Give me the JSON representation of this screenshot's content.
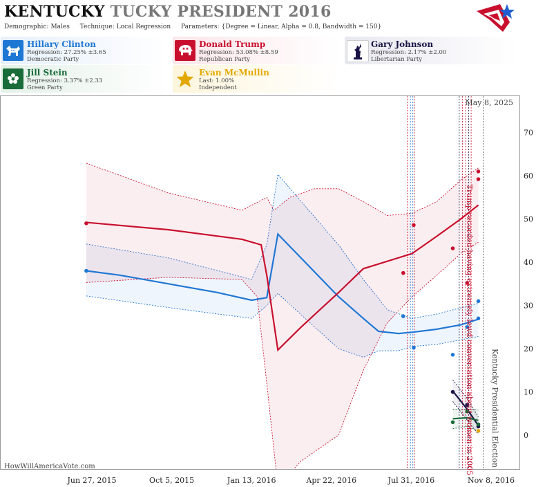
{
  "header": {
    "state": "KENTUCKY",
    "title_rest": "TUCKY PRESIDENT 2016",
    "demographic_label": "Demographic:",
    "demographic_value": "Males",
    "technique_label": "Technique:",
    "technique_value": "Local Regression",
    "parameters_label": "Parameters:",
    "parameters_value": "{Degree = Linear, Alpha = 0.8, Bandwidth = 150}"
  },
  "candidates": [
    {
      "name": "Hillary Clinton",
      "line1": "Regression: 27.25% ±3.65",
      "line2": "Democratic Party",
      "color": "#1f77d4",
      "icon": "donkey-icon"
    },
    {
      "name": "Donald Trump",
      "line1": "Regression: 53.08% ±8.59",
      "line2": "Republican Party",
      "color": "#c8102e",
      "icon": "elephant-icon"
    },
    {
      "name": "Gary Johnson",
      "line1": "Regression: 2.17% ±2.00",
      "line2": "Libertarian Party",
      "color": "#1a1446",
      "icon": "liberty-statue-icon"
    },
    {
      "name": "Jill Stein",
      "line1": "Regression: 3.37% ±2.33",
      "line2": "Green Party",
      "color": "#1a6b3a",
      "icon": "flower-icon"
    },
    {
      "name": "Evan McMullin",
      "line1": "Last: 1.00%",
      "line2": "Independent",
      "color": "#e3a800",
      "icon": "star-icon"
    }
  ],
  "chart_data": {
    "type": "line",
    "x_ticks": [
      "Jun 27, 2015",
      "Oct 5, 2015",
      "Jan 13, 2016",
      "Apr 22, 2016",
      "Jul 31, 2016",
      "Nov 8, 2016"
    ],
    "y_ticks": [
      0,
      10,
      20,
      30,
      40,
      50,
      60,
      70
    ],
    "ylim": [
      -9,
      78
    ],
    "date_label": "May 8, 2025",
    "credit": "HowWillAmericaVote.com",
    "annotations": {
      "trump_recording": "Trump recorded having extremely lewd conversation about women in 2005",
      "election": "Kentucky Presidential Election"
    },
    "series": [
      {
        "name": "Hillary Clinton",
        "color": "#1f77d4",
        "points": [
          [
            "2015-06-20",
            38.0
          ],
          [
            "2016-07-21",
            27.5
          ],
          [
            "2016-08-03",
            20.2
          ],
          [
            "2016-09-21",
            18.6
          ],
          [
            "2016-10-09",
            25.0
          ],
          [
            "2016-10-23",
            31.0
          ],
          [
            "2016-10-23",
            27.0
          ]
        ],
        "trend": [
          [
            "2015-06-20",
            38
          ],
          [
            "2015-08-01",
            37
          ],
          [
            "2015-10-01",
            35
          ],
          [
            "2015-12-01",
            33
          ],
          [
            "2016-01-13",
            31.2
          ],
          [
            "2016-02-01",
            31.8
          ],
          [
            "2016-02-15",
            46.5
          ],
          [
            "2016-03-20",
            40
          ],
          [
            "2016-05-01",
            32
          ],
          [
            "2016-06-01",
            27
          ],
          [
            "2016-06-20",
            24
          ],
          [
            "2016-07-15",
            23.5
          ],
          [
            "2016-08-01",
            23.8
          ],
          [
            "2016-09-01",
            24.5
          ],
          [
            "2016-10-01",
            25.5
          ],
          [
            "2016-10-23",
            26.8
          ]
        ],
        "upper": [
          [
            "2015-06-20",
            44.2
          ],
          [
            "2015-10-01",
            41
          ],
          [
            "2016-01-13",
            36
          ],
          [
            "2016-02-01",
            44
          ],
          [
            "2016-02-15",
            60.3
          ],
          [
            "2016-03-20",
            53
          ],
          [
            "2016-05-01",
            44
          ],
          [
            "2016-06-01",
            36
          ],
          [
            "2016-07-01",
            29
          ],
          [
            "2016-08-01",
            27
          ],
          [
            "2016-09-01",
            28
          ],
          [
            "2016-10-23",
            30.5
          ]
        ],
        "lower": [
          [
            "2015-06-20",
            32.2
          ],
          [
            "2015-10-01",
            29.5
          ],
          [
            "2016-01-13",
            27
          ],
          [
            "2016-02-01",
            30
          ],
          [
            "2016-02-15",
            32.8
          ],
          [
            "2016-03-20",
            27
          ],
          [
            "2016-05-01",
            20
          ],
          [
            "2016-06-01",
            18
          ],
          [
            "2016-06-20",
            19.5
          ],
          [
            "2016-07-15",
            19.5
          ],
          [
            "2016-08-01",
            20.5
          ],
          [
            "2016-09-01",
            21
          ],
          [
            "2016-10-23",
            22.8
          ]
        ]
      },
      {
        "name": "Donald Trump",
        "color": "#c8102e",
        "points": [
          [
            "2015-06-20",
            49.0
          ],
          [
            "2016-07-21",
            37.5
          ],
          [
            "2016-08-03",
            48.6
          ],
          [
            "2016-09-21",
            43.2
          ],
          [
            "2016-10-09",
            35.2
          ],
          [
            "2016-10-23",
            61.0
          ],
          [
            "2016-10-23",
            59.2
          ]
        ],
        "trend": [
          [
            "2015-06-20",
            49.2
          ],
          [
            "2015-10-01",
            47.5
          ],
          [
            "2016-01-01",
            45.3
          ],
          [
            "2016-01-25",
            44
          ],
          [
            "2016-02-01",
            37
          ],
          [
            "2016-02-15",
            19.7
          ],
          [
            "2016-03-15",
            25
          ],
          [
            "2016-05-01",
            33
          ],
          [
            "2016-06-01",
            38.5
          ],
          [
            "2016-07-01",
            40.2
          ],
          [
            "2016-08-01",
            42
          ],
          [
            "2016-09-01",
            46
          ],
          [
            "2016-10-01",
            50
          ],
          [
            "2016-10-23",
            53.2
          ]
        ],
        "upper": [
          [
            "2015-06-20",
            62.9
          ],
          [
            "2015-10-01",
            56
          ],
          [
            "2016-01-01",
            52
          ],
          [
            "2016-02-01",
            55
          ],
          [
            "2016-02-10",
            52
          ],
          [
            "2016-03-01",
            55
          ],
          [
            "2016-04-01",
            57
          ],
          [
            "2016-05-01",
            57
          ],
          [
            "2016-06-01",
            54
          ],
          [
            "2016-07-01",
            50.8
          ],
          [
            "2016-08-01",
            51.3
          ],
          [
            "2016-09-01",
            54
          ],
          [
            "2016-10-01",
            59
          ],
          [
            "2016-10-23",
            61.8
          ]
        ],
        "lower": [
          [
            "2015-06-20",
            35.3
          ],
          [
            "2015-10-01",
            36.5
          ],
          [
            "2016-01-01",
            36
          ],
          [
            "2016-01-20",
            32
          ],
          [
            "2016-02-01",
            12
          ],
          [
            "2016-02-15",
            -12
          ],
          [
            "2016-03-15",
            -6
          ],
          [
            "2016-05-01",
            0
          ],
          [
            "2016-06-01",
            15
          ],
          [
            "2016-07-01",
            26
          ],
          [
            "2016-08-01",
            32
          ],
          [
            "2016-09-01",
            37
          ],
          [
            "2016-10-01",
            42
          ],
          [
            "2016-10-23",
            44.6
          ]
        ]
      },
      {
        "name": "Gary Johnson",
        "color": "#1a1446",
        "points": [
          [
            "2016-09-21",
            10.0
          ],
          [
            "2016-10-09",
            7.0
          ],
          [
            "2016-10-23",
            2.0
          ]
        ],
        "trend": [
          [
            "2016-09-21",
            10.2
          ],
          [
            "2016-10-09",
            6
          ],
          [
            "2016-10-23",
            2.2
          ]
        ],
        "upper": [
          [
            "2016-09-21",
            12.8
          ],
          [
            "2016-10-09",
            8.5
          ],
          [
            "2016-10-23",
            4.2
          ]
        ],
        "lower": [
          [
            "2016-09-21",
            7.8
          ],
          [
            "2016-10-09",
            3.5
          ],
          [
            "2016-10-23",
            0.2
          ]
        ]
      },
      {
        "name": "Jill Stein",
        "color": "#1a6b3a",
        "points": [
          [
            "2016-09-21",
            3.0
          ],
          [
            "2016-10-09",
            5.5
          ],
          [
            "2016-10-23",
            2.5
          ]
        ],
        "trend": [
          [
            "2016-09-21",
            3.8
          ],
          [
            "2016-10-09",
            4
          ],
          [
            "2016-10-23",
            3.4
          ]
        ],
        "upper": [
          [
            "2016-09-21",
            6
          ],
          [
            "2016-10-09",
            6
          ],
          [
            "2016-10-23",
            5.8
          ]
        ],
        "lower": [
          [
            "2016-09-21",
            1.5
          ],
          [
            "2016-10-09",
            2
          ],
          [
            "2016-10-23",
            1
          ]
        ]
      },
      {
        "name": "Evan McMullin",
        "color": "#e3a800",
        "points": [
          [
            "2016-10-23",
            1.0
          ]
        ],
        "trend": [],
        "upper": [],
        "lower": []
      }
    ]
  }
}
